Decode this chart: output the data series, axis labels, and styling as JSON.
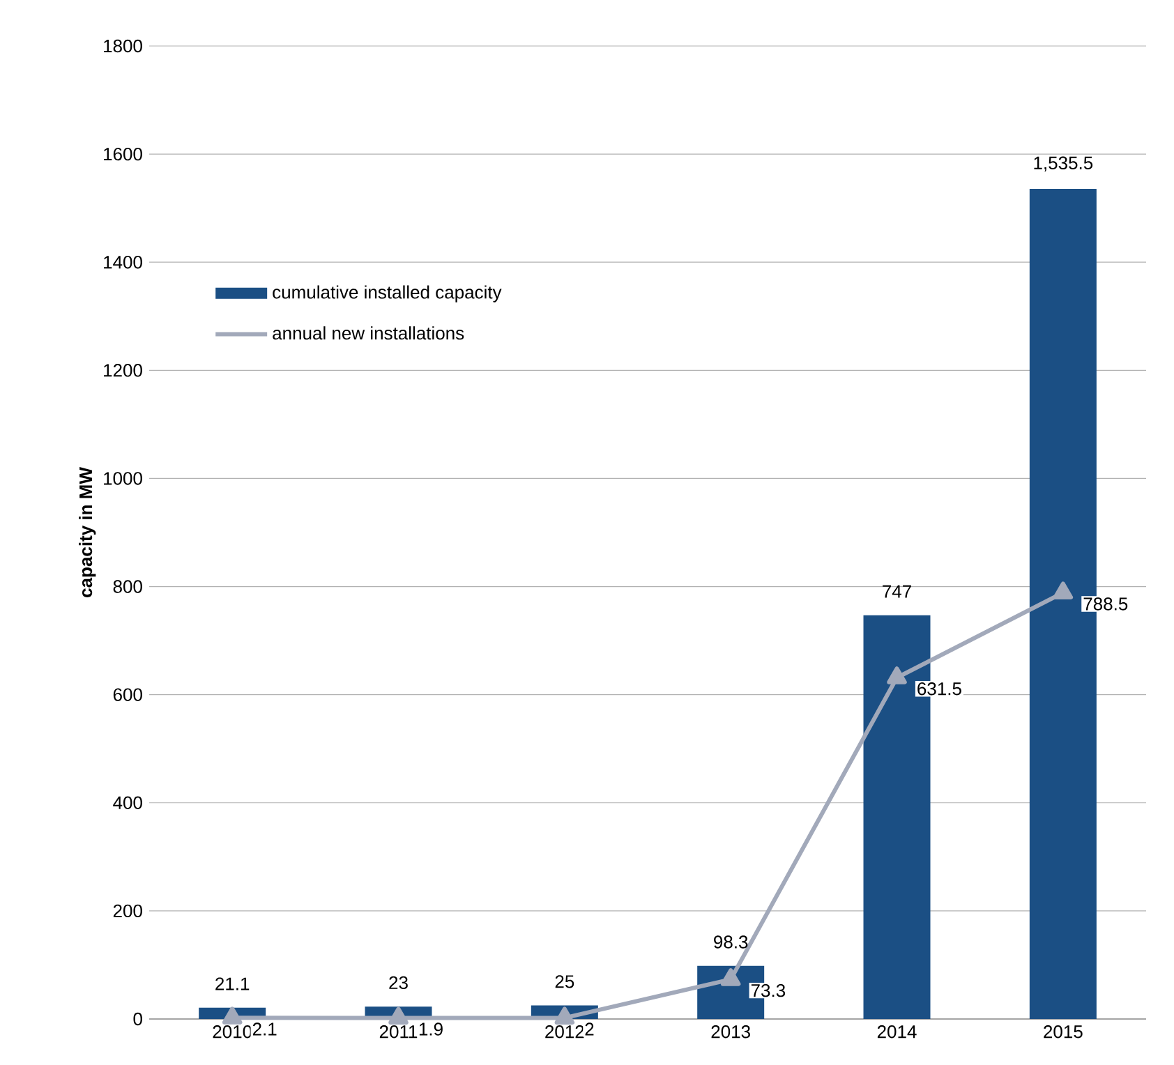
{
  "chart_data": {
    "type": "bar",
    "ylabel": "capacity in MW",
    "categories": [
      "2010",
      "2011",
      "2012",
      "2013",
      "2014",
      "2015"
    ],
    "series": [
      {
        "name": "cumulative installed capacity",
        "color": "#1b4f84",
        "values": [
          21.1,
          23,
          25,
          98.3,
          747,
          1535.5
        ],
        "value_labels": [
          "21.1",
          "23",
          "25",
          "98.3",
          "747",
          "1,535.5"
        ]
      },
      {
        "name": "annual new installations",
        "type": "line",
        "color": "#a2a9ba",
        "values": [
          2.1,
          1.9,
          2,
          73.3,
          631.5,
          788.5
        ],
        "value_labels": [
          "2.1",
          "1.9",
          "2",
          "73.3",
          "631.5",
          "788.5"
        ]
      }
    ],
    "ylim": [
      0,
      1800
    ],
    "yticks": [
      0,
      200,
      400,
      600,
      800,
      1000,
      1200,
      1400,
      1600,
      1800
    ],
    "grid": "y",
    "legend": "top left",
    "marker": "triangle",
    "line_style": "solid"
  }
}
